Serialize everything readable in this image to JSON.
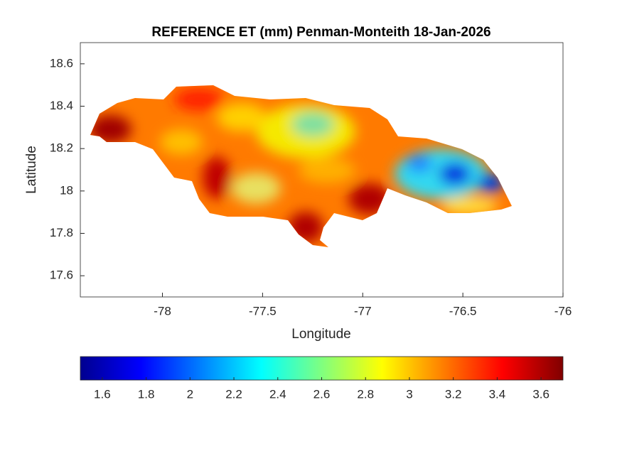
{
  "chart_data": {
    "type": "map",
    "title": "REFERENCE ET (mm) Penman-Monteith 18-Jan-2026",
    "xlabel": "Longitude",
    "ylabel": "Latitude",
    "xlim": [
      -78.41,
      -76
    ],
    "xticks": [
      -78,
      -77.5,
      -77,
      -76.5,
      -76
    ],
    "ylim": [
      17.5,
      18.7
    ],
    "yticks": [
      17.6,
      17.8,
      18,
      18.2,
      18.4,
      18.6
    ],
    "colormap": "jet",
    "colorbar": {
      "clim": [
        1.5,
        3.7
      ],
      "ticks": [
        1.6,
        1.8,
        2,
        2.2,
        2.4,
        2.6,
        2.8,
        3,
        3.2,
        3.4,
        3.6
      ]
    }
  }
}
